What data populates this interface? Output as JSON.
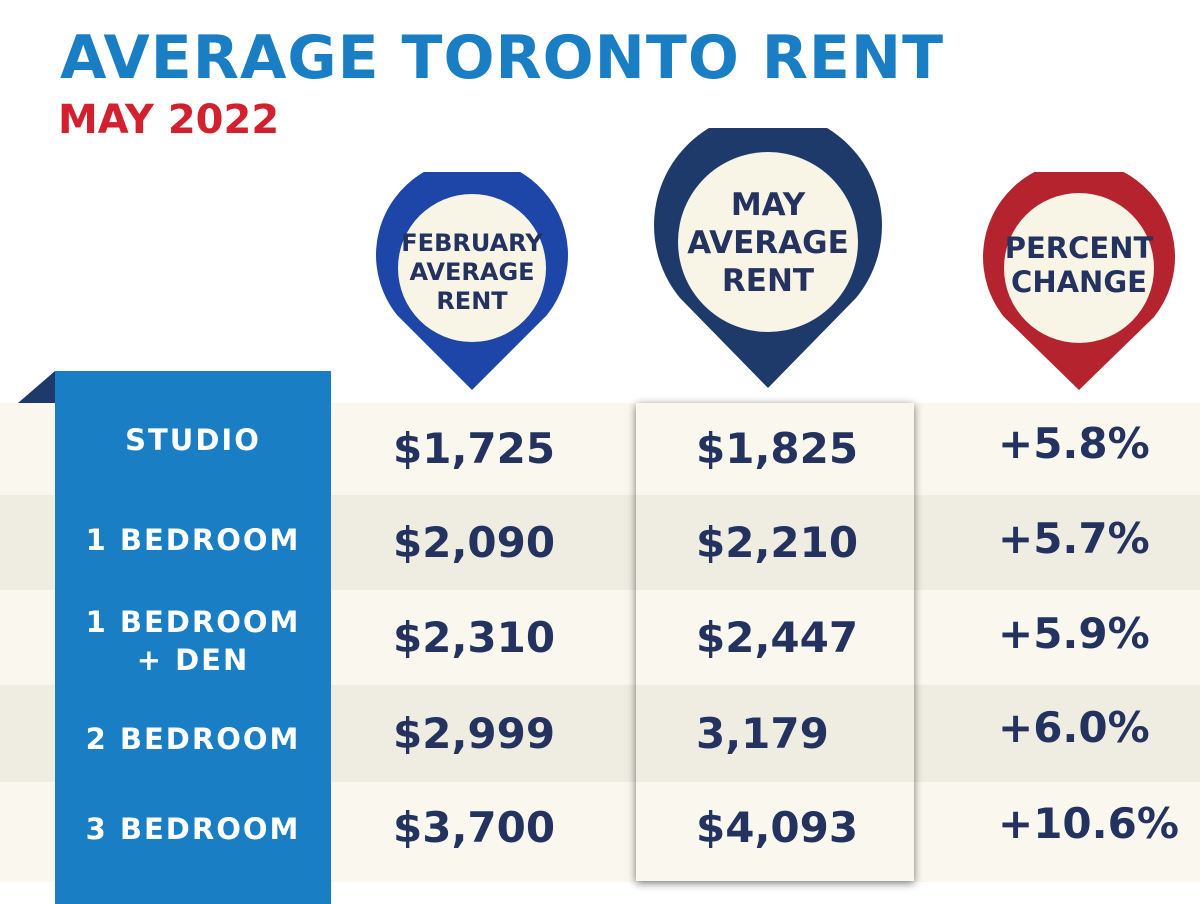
{
  "header": {
    "title": "AVERAGE TORONTO RENT",
    "subtitle": "MAY 2022"
  },
  "colors": {
    "title": "#1a7ec4",
    "subtitle": "#d3202e",
    "ribbon": "#1a7ec4",
    "pin_february": "#1e46a8",
    "pin_may": "#1d3a6b",
    "pin_percent": "#b5232e",
    "value_text": "#24325f"
  },
  "columns": [
    {
      "label": "FEBRUARY\nAVERAGE\nRENT"
    },
    {
      "label": "MAY\nAVERAGE\nRENT"
    },
    {
      "label": "PERCENT\nCHANGE"
    }
  ],
  "rows": [
    {
      "label": "STUDIO",
      "february": "$1,725",
      "may": "$1,825",
      "change": "+5.8%"
    },
    {
      "label": "1 BEDROOM",
      "february": "$2,090",
      "may": "$2,210",
      "change": "+5.7%"
    },
    {
      "label": "1 BEDROOM\n+ DEN",
      "february": "$2,310",
      "may": "$2,447",
      "change": "+5.9%"
    },
    {
      "label": "2 BEDROOM",
      "february": "$2,999",
      "may": "3,179",
      "change": "+6.0%"
    },
    {
      "label": "3 BEDROOM",
      "february": "$3,700",
      "may": "$4,093",
      "change": "+10.6%"
    }
  ],
  "chart_data": {
    "type": "table",
    "title": "AVERAGE TORONTO RENT",
    "subtitle": "MAY 2022",
    "columns": [
      "FEBRUARY AVERAGE RENT",
      "MAY AVERAGE RENT",
      "PERCENT CHANGE"
    ],
    "categories": [
      "STUDIO",
      "1 BEDROOM",
      "1 BEDROOM + DEN",
      "2 BEDROOM",
      "3 BEDROOM"
    ],
    "series": [
      {
        "name": "FEBRUARY AVERAGE RENT",
        "values": [
          1725,
          2090,
          2310,
          2999,
          3700
        ]
      },
      {
        "name": "MAY AVERAGE RENT",
        "values": [
          1825,
          2210,
          2447,
          3179,
          4093
        ]
      },
      {
        "name": "PERCENT CHANGE",
        "values": [
          5.8,
          5.7,
          5.9,
          6.0,
          10.6
        ]
      }
    ]
  }
}
